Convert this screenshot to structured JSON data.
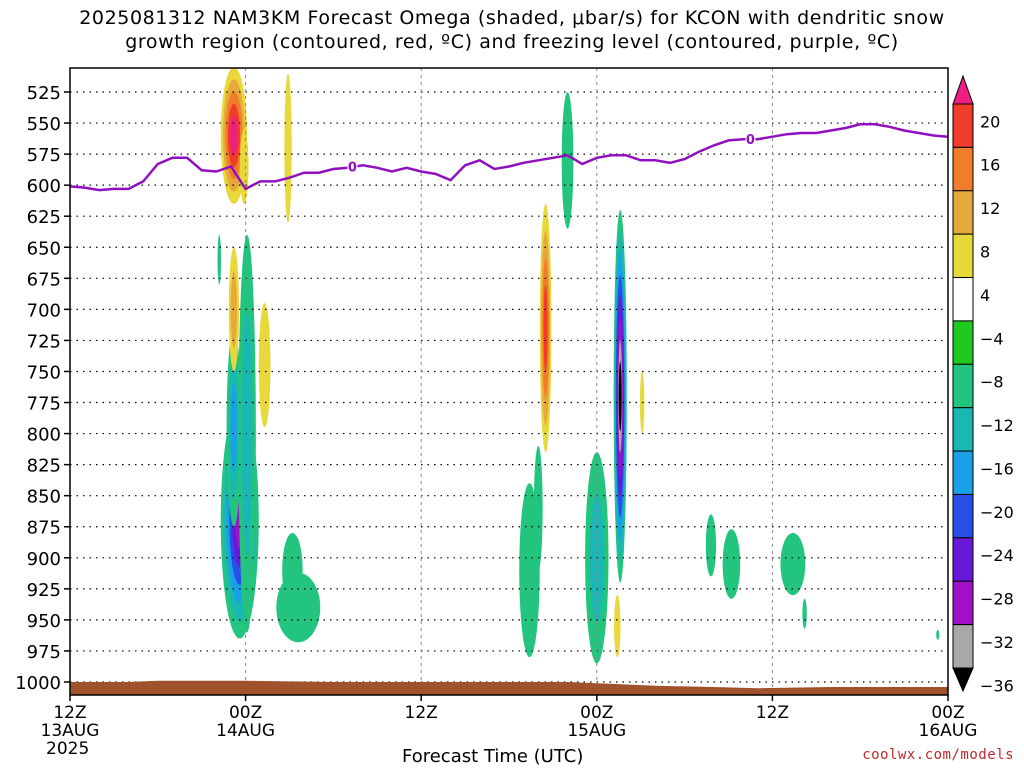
{
  "title": {
    "line1": "2025081312 NAM3KM Forecast Omega (shaded, μbar/s) for KCON with dendritic snow",
    "line2": "growth region (contoured, red, ºC) and freezing level (contoured, purple, ºC)"
  },
  "credit": "coolwx.com/models",
  "chart_data": {
    "type": "heatmap",
    "xlabel": "Forecast Time (UTC)",
    "ylabel": "",
    "y_axis": {
      "reversed": true,
      "ticks": [
        525,
        550,
        575,
        600,
        625,
        650,
        675,
        700,
        725,
        750,
        775,
        800,
        825,
        850,
        875,
        900,
        925,
        950,
        975,
        1000
      ],
      "unit": "hPa"
    },
    "x_axis": {
      "ticks": [
        {
          "hour": 0,
          "lines": [
            "12Z",
            "13AUG",
            "2025"
          ]
        },
        {
          "hour": 12,
          "lines": [
            "00Z",
            "14AUG"
          ]
        },
        {
          "hour": 24,
          "lines": [
            "12Z"
          ]
        },
        {
          "hour": 36,
          "lines": [
            "00Z",
            "15AUG"
          ]
        },
        {
          "hour": 48,
          "lines": [
            "12Z"
          ]
        },
        {
          "hour": 60,
          "lines": [
            "00Z",
            "16AUG"
          ]
        }
      ],
      "range_hours": [
        0,
        60
      ]
    },
    "grid": true,
    "colorbar": {
      "labels": [
        20,
        16,
        12,
        8,
        4,
        -4,
        -8,
        -12,
        -16,
        -20,
        -24,
        -28,
        -32,
        -36
      ],
      "bands": [
        {
          "min": 20,
          "max": 24,
          "color": "#ee1e82"
        },
        {
          "min": 16,
          "max": 20,
          "color": "#f03c28"
        },
        {
          "min": 12,
          "max": 16,
          "color": "#ef7d2b"
        },
        {
          "min": 8,
          "max": 12,
          "color": "#e7a93a"
        },
        {
          "min": 4,
          "max": 8,
          "color": "#e8d83c"
        },
        {
          "min": -4,
          "max": 4,
          "color": "#ffffff"
        },
        {
          "min": -8,
          "max": -4,
          "color": "#1ec81e"
        },
        {
          "min": -12,
          "max": -8,
          "color": "#22c47e"
        },
        {
          "min": -16,
          "max": -12,
          "color": "#1ab8b4"
        },
        {
          "min": -20,
          "max": -16,
          "color": "#1aa0e6"
        },
        {
          "min": -24,
          "max": -20,
          "color": "#2a4ee8"
        },
        {
          "min": -28,
          "max": -24,
          "color": "#6a18d8"
        },
        {
          "min": -32,
          "max": -28,
          "color": "#a010c8"
        },
        {
          "min": -36,
          "max": -32,
          "color": "#a8a8a8"
        },
        {
          "min": -40,
          "max": -36,
          "color": "#000000"
        }
      ]
    },
    "freezing_level": {
      "label": "0",
      "color": "#9010c0",
      "label_points": [
        {
          "hour": 19.3,
          "p": 585
        },
        {
          "hour": 46.5,
          "p": 563
        }
      ],
      "points": [
        [
          0,
          601
        ],
        [
          1,
          602
        ],
        [
          2,
          604
        ],
        [
          3,
          603
        ],
        [
          4,
          603
        ],
        [
          5,
          597
        ],
        [
          6,
          583
        ],
        [
          7,
          578
        ],
        [
          8,
          578
        ],
        [
          9,
          588
        ],
        [
          10,
          589
        ],
        [
          11,
          585
        ],
        [
          12,
          603
        ],
        [
          13,
          597
        ],
        [
          14,
          597
        ],
        [
          15,
          594
        ],
        [
          16,
          590
        ],
        [
          17,
          590
        ],
        [
          18,
          587
        ],
        [
          19,
          586
        ],
        [
          20,
          584
        ],
        [
          21,
          586
        ],
        [
          22,
          589
        ],
        [
          23,
          586
        ],
        [
          24,
          589
        ],
        [
          25,
          591
        ],
        [
          26,
          596
        ],
        [
          27,
          584
        ],
        [
          28,
          580
        ],
        [
          29,
          587
        ],
        [
          30,
          585
        ],
        [
          31,
          582
        ],
        [
          32,
          580
        ],
        [
          33,
          578
        ],
        [
          34,
          576
        ],
        [
          35,
          583
        ],
        [
          36,
          578
        ],
        [
          37,
          576
        ],
        [
          38,
          576
        ],
        [
          39,
          580
        ],
        [
          40,
          580
        ],
        [
          41,
          582
        ],
        [
          42,
          579
        ],
        [
          43,
          573
        ],
        [
          44,
          568
        ],
        [
          45,
          564
        ],
        [
          46,
          563
        ],
        [
          47,
          563
        ],
        [
          48,
          561
        ],
        [
          49,
          559
        ],
        [
          50,
          558
        ],
        [
          51,
          558
        ],
        [
          52,
          556
        ],
        [
          53,
          554
        ],
        [
          54,
          551
        ],
        [
          55,
          551
        ],
        [
          56,
          553
        ],
        [
          57,
          556
        ],
        [
          58,
          558
        ],
        [
          59,
          560
        ],
        [
          60,
          561
        ]
      ]
    },
    "terrain": {
      "color": "#a0522d",
      "points": [
        [
          0,
          1000
        ],
        [
          4,
          1000
        ],
        [
          6,
          999
        ],
        [
          12,
          999
        ],
        [
          18,
          1000
        ],
        [
          28,
          1000
        ],
        [
          34,
          1000
        ],
        [
          40,
          1003
        ],
        [
          44,
          1004
        ],
        [
          47,
          1005
        ],
        [
          52,
          1004
        ],
        [
          60,
          1004
        ]
      ]
    },
    "omega_features": [
      {
        "hour": 11.6,
        "p": 870,
        "hw": 1.3,
        "hp": 95,
        "base": -8,
        "levels": [
          -12,
          -16,
          -20,
          -24,
          -28
        ]
      },
      {
        "hour": 11.2,
        "p": 795,
        "hw": 0.5,
        "hp": 80,
        "base": -8,
        "levels": [
          -12,
          -16
        ]
      },
      {
        "hour": 12.1,
        "p": 800,
        "hw": 0.6,
        "hp": 160,
        "base": -8,
        "levels": [
          -12
        ]
      },
      {
        "hour": 15.6,
        "p": 940,
        "hw": 1.5,
        "hp": 28,
        "base": -8,
        "levels": []
      },
      {
        "hour": 15.2,
        "p": 910,
        "hw": 0.7,
        "hp": 30,
        "base": -8,
        "levels": []
      },
      {
        "hour": 11.2,
        "p": 560,
        "hw": 0.9,
        "hp": 55,
        "base": 4,
        "levels": [
          8,
          12,
          16,
          20
        ]
      },
      {
        "hour": 11.9,
        "p": 585,
        "hw": 0.3,
        "hp": 30,
        "base": 4,
        "levels": []
      },
      {
        "hour": 14.9,
        "p": 570,
        "hw": 0.25,
        "hp": 60,
        "base": 4,
        "levels": []
      },
      {
        "hour": 11.2,
        "p": 700,
        "hw": 0.35,
        "hp": 50,
        "base": 4,
        "levels": [
          8
        ]
      },
      {
        "hour": 13.3,
        "p": 745,
        "hw": 0.4,
        "hp": 50,
        "base": 4,
        "levels": []
      },
      {
        "hour": 10.2,
        "p": 660,
        "hw": 0.12,
        "hp": 20,
        "base": -8,
        "levels": []
      },
      {
        "hour": 34.0,
        "p": 580,
        "hw": 0.4,
        "hp": 55,
        "base": -8,
        "levels": []
      },
      {
        "hour": 32.5,
        "p": 715,
        "hw": 0.4,
        "hp": 100,
        "base": 4,
        "levels": [
          8,
          12,
          16
        ]
      },
      {
        "hour": 31.4,
        "p": 910,
        "hw": 0.7,
        "hp": 70,
        "base": -8,
        "levels": []
      },
      {
        "hour": 32.0,
        "p": 860,
        "hw": 0.3,
        "hp": 50,
        "base": -8,
        "levels": []
      },
      {
        "hour": 36.0,
        "p": 900,
        "hw": 0.8,
        "hp": 85,
        "base": -8,
        "levels": [
          -12
        ]
      },
      {
        "hour": 37.6,
        "p": 770,
        "hw": 0.45,
        "hp": 150,
        "base": -8,
        "levels": [
          -12,
          -16,
          -20,
          -24,
          -28,
          -32,
          -36
        ]
      },
      {
        "hour": 37.4,
        "p": 955,
        "hw": 0.22,
        "hp": 25,
        "base": 4,
        "levels": []
      },
      {
        "hour": 39.1,
        "p": 775,
        "hw": 0.15,
        "hp": 25,
        "base": 4,
        "levels": []
      },
      {
        "hour": 43.8,
        "p": 890,
        "hw": 0.35,
        "hp": 25,
        "base": -8,
        "levels": []
      },
      {
        "hour": 45.2,
        "p": 905,
        "hw": 0.6,
        "hp": 28,
        "base": -8,
        "levels": []
      },
      {
        "hour": 49.4,
        "p": 905,
        "hw": 0.85,
        "hp": 25,
        "base": -8,
        "levels": []
      },
      {
        "hour": 50.2,
        "p": 945,
        "hw": 0.15,
        "hp": 12,
        "base": -8,
        "levels": []
      },
      {
        "hour": 59.3,
        "p": 962,
        "hw": 0.1,
        "hp": 4,
        "base": -8,
        "levels": []
      }
    ]
  }
}
